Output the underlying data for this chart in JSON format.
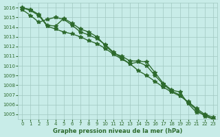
{
  "x": [
    0,
    1,
    2,
    3,
    4,
    5,
    6,
    7,
    8,
    9,
    10,
    11,
    12,
    13,
    14,
    15,
    16,
    17,
    18,
    19,
    20,
    21,
    22,
    23
  ],
  "line1": [
    1016.0,
    1015.8,
    1015.3,
    1014.2,
    1014.1,
    1014.9,
    1014.4,
    1013.8,
    1013.5,
    1013.0,
    1012.1,
    1011.3,
    1011.0,
    1010.5,
    1010.5,
    1010.4,
    1009.3,
    1008.2,
    1007.5,
    1007.3,
    1006.1,
    1005.2,
    1005.0,
    1004.7
  ],
  "line2": [
    1015.8,
    1015.2,
    1014.5,
    1014.8,
    1015.0,
    1014.8,
    1014.2,
    1013.5,
    1013.2,
    1012.8,
    1012.2,
    1011.4,
    1010.8,
    1010.2,
    1010.4,
    1010.0,
    1009.0,
    1008.1,
    1007.4,
    1007.0,
    1006.2,
    1005.5,
    1004.8,
    1004.5
  ],
  "line3": [
    1016.0,
    1015.7,
    1015.2,
    1014.1,
    1013.8,
    1013.5,
    1013.3,
    1013.0,
    1012.6,
    1012.3,
    1011.8,
    1011.2,
    1010.7,
    1010.2,
    1009.5,
    1009.0,
    1008.4,
    1007.8,
    1007.3,
    1006.9,
    1006.3,
    1005.6,
    1005.0,
    1004.5
  ],
  "line_color": "#2d6a2d",
  "bg_color": "#c8ece8",
  "grid_color": "#a0c8c0",
  "text_color": "#2d6a2d",
  "xlabel": "Graphe pression niveau de la mer (hPa)",
  "ylim_min": 1004.5,
  "ylim_max": 1016.5,
  "xlim_min": -0.5,
  "xlim_max": 23.5,
  "yticks": [
    1005,
    1006,
    1007,
    1008,
    1009,
    1010,
    1011,
    1012,
    1013,
    1014,
    1015,
    1016
  ],
  "xticks": [
    0,
    1,
    2,
    3,
    4,
    5,
    6,
    7,
    8,
    9,
    10,
    11,
    12,
    13,
    14,
    15,
    16,
    17,
    18,
    19,
    20,
    21,
    22,
    23
  ]
}
